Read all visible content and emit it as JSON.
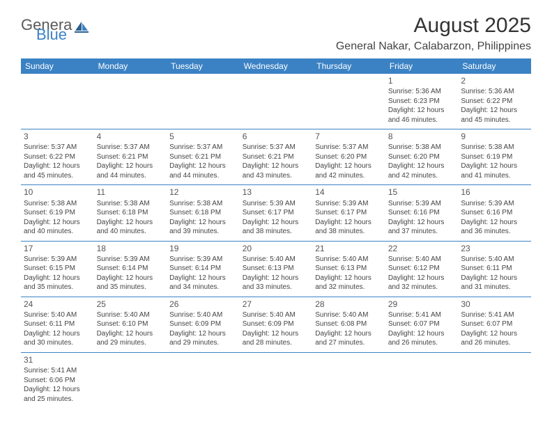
{
  "brand": {
    "text1": "Genera",
    "text2": "Blue"
  },
  "title": "August 2025",
  "location": "General Nakar, Calabarzon, Philippines",
  "colors": {
    "header_bg": "#3b82c4",
    "header_fg": "#ffffff",
    "text": "#444444",
    "rule": "#3b82c4"
  },
  "day_headers": [
    "Sunday",
    "Monday",
    "Tuesday",
    "Wednesday",
    "Thursday",
    "Friday",
    "Saturday"
  ],
  "weeks": [
    [
      null,
      null,
      null,
      null,
      null,
      {
        "n": "1",
        "sr": "5:36 AM",
        "ss": "6:23 PM",
        "dl": "12 hours and 46 minutes."
      },
      {
        "n": "2",
        "sr": "5:36 AM",
        "ss": "6:22 PM",
        "dl": "12 hours and 45 minutes."
      }
    ],
    [
      {
        "n": "3",
        "sr": "5:37 AM",
        "ss": "6:22 PM",
        "dl": "12 hours and 45 minutes."
      },
      {
        "n": "4",
        "sr": "5:37 AM",
        "ss": "6:21 PM",
        "dl": "12 hours and 44 minutes."
      },
      {
        "n": "5",
        "sr": "5:37 AM",
        "ss": "6:21 PM",
        "dl": "12 hours and 44 minutes."
      },
      {
        "n": "6",
        "sr": "5:37 AM",
        "ss": "6:21 PM",
        "dl": "12 hours and 43 minutes."
      },
      {
        "n": "7",
        "sr": "5:37 AM",
        "ss": "6:20 PM",
        "dl": "12 hours and 42 minutes."
      },
      {
        "n": "8",
        "sr": "5:38 AM",
        "ss": "6:20 PM",
        "dl": "12 hours and 42 minutes."
      },
      {
        "n": "9",
        "sr": "5:38 AM",
        "ss": "6:19 PM",
        "dl": "12 hours and 41 minutes."
      }
    ],
    [
      {
        "n": "10",
        "sr": "5:38 AM",
        "ss": "6:19 PM",
        "dl": "12 hours and 40 minutes."
      },
      {
        "n": "11",
        "sr": "5:38 AM",
        "ss": "6:18 PM",
        "dl": "12 hours and 40 minutes."
      },
      {
        "n": "12",
        "sr": "5:38 AM",
        "ss": "6:18 PM",
        "dl": "12 hours and 39 minutes."
      },
      {
        "n": "13",
        "sr": "5:39 AM",
        "ss": "6:17 PM",
        "dl": "12 hours and 38 minutes."
      },
      {
        "n": "14",
        "sr": "5:39 AM",
        "ss": "6:17 PM",
        "dl": "12 hours and 38 minutes."
      },
      {
        "n": "15",
        "sr": "5:39 AM",
        "ss": "6:16 PM",
        "dl": "12 hours and 37 minutes."
      },
      {
        "n": "16",
        "sr": "5:39 AM",
        "ss": "6:16 PM",
        "dl": "12 hours and 36 minutes."
      }
    ],
    [
      {
        "n": "17",
        "sr": "5:39 AM",
        "ss": "6:15 PM",
        "dl": "12 hours and 35 minutes."
      },
      {
        "n": "18",
        "sr": "5:39 AM",
        "ss": "6:14 PM",
        "dl": "12 hours and 35 minutes."
      },
      {
        "n": "19",
        "sr": "5:39 AM",
        "ss": "6:14 PM",
        "dl": "12 hours and 34 minutes."
      },
      {
        "n": "20",
        "sr": "5:40 AM",
        "ss": "6:13 PM",
        "dl": "12 hours and 33 minutes."
      },
      {
        "n": "21",
        "sr": "5:40 AM",
        "ss": "6:13 PM",
        "dl": "12 hours and 32 minutes."
      },
      {
        "n": "22",
        "sr": "5:40 AM",
        "ss": "6:12 PM",
        "dl": "12 hours and 32 minutes."
      },
      {
        "n": "23",
        "sr": "5:40 AM",
        "ss": "6:11 PM",
        "dl": "12 hours and 31 minutes."
      }
    ],
    [
      {
        "n": "24",
        "sr": "5:40 AM",
        "ss": "6:11 PM",
        "dl": "12 hours and 30 minutes."
      },
      {
        "n": "25",
        "sr": "5:40 AM",
        "ss": "6:10 PM",
        "dl": "12 hours and 29 minutes."
      },
      {
        "n": "26",
        "sr": "5:40 AM",
        "ss": "6:09 PM",
        "dl": "12 hours and 29 minutes."
      },
      {
        "n": "27",
        "sr": "5:40 AM",
        "ss": "6:09 PM",
        "dl": "12 hours and 28 minutes."
      },
      {
        "n": "28",
        "sr": "5:40 AM",
        "ss": "6:08 PM",
        "dl": "12 hours and 27 minutes."
      },
      {
        "n": "29",
        "sr": "5:41 AM",
        "ss": "6:07 PM",
        "dl": "12 hours and 26 minutes."
      },
      {
        "n": "30",
        "sr": "5:41 AM",
        "ss": "6:07 PM",
        "dl": "12 hours and 26 minutes."
      }
    ],
    [
      {
        "n": "31",
        "sr": "5:41 AM",
        "ss": "6:06 PM",
        "dl": "12 hours and 25 minutes."
      },
      null,
      null,
      null,
      null,
      null,
      null
    ]
  ],
  "labels": {
    "sunrise": "Sunrise: ",
    "sunset": "Sunset: ",
    "daylight": "Daylight: "
  }
}
